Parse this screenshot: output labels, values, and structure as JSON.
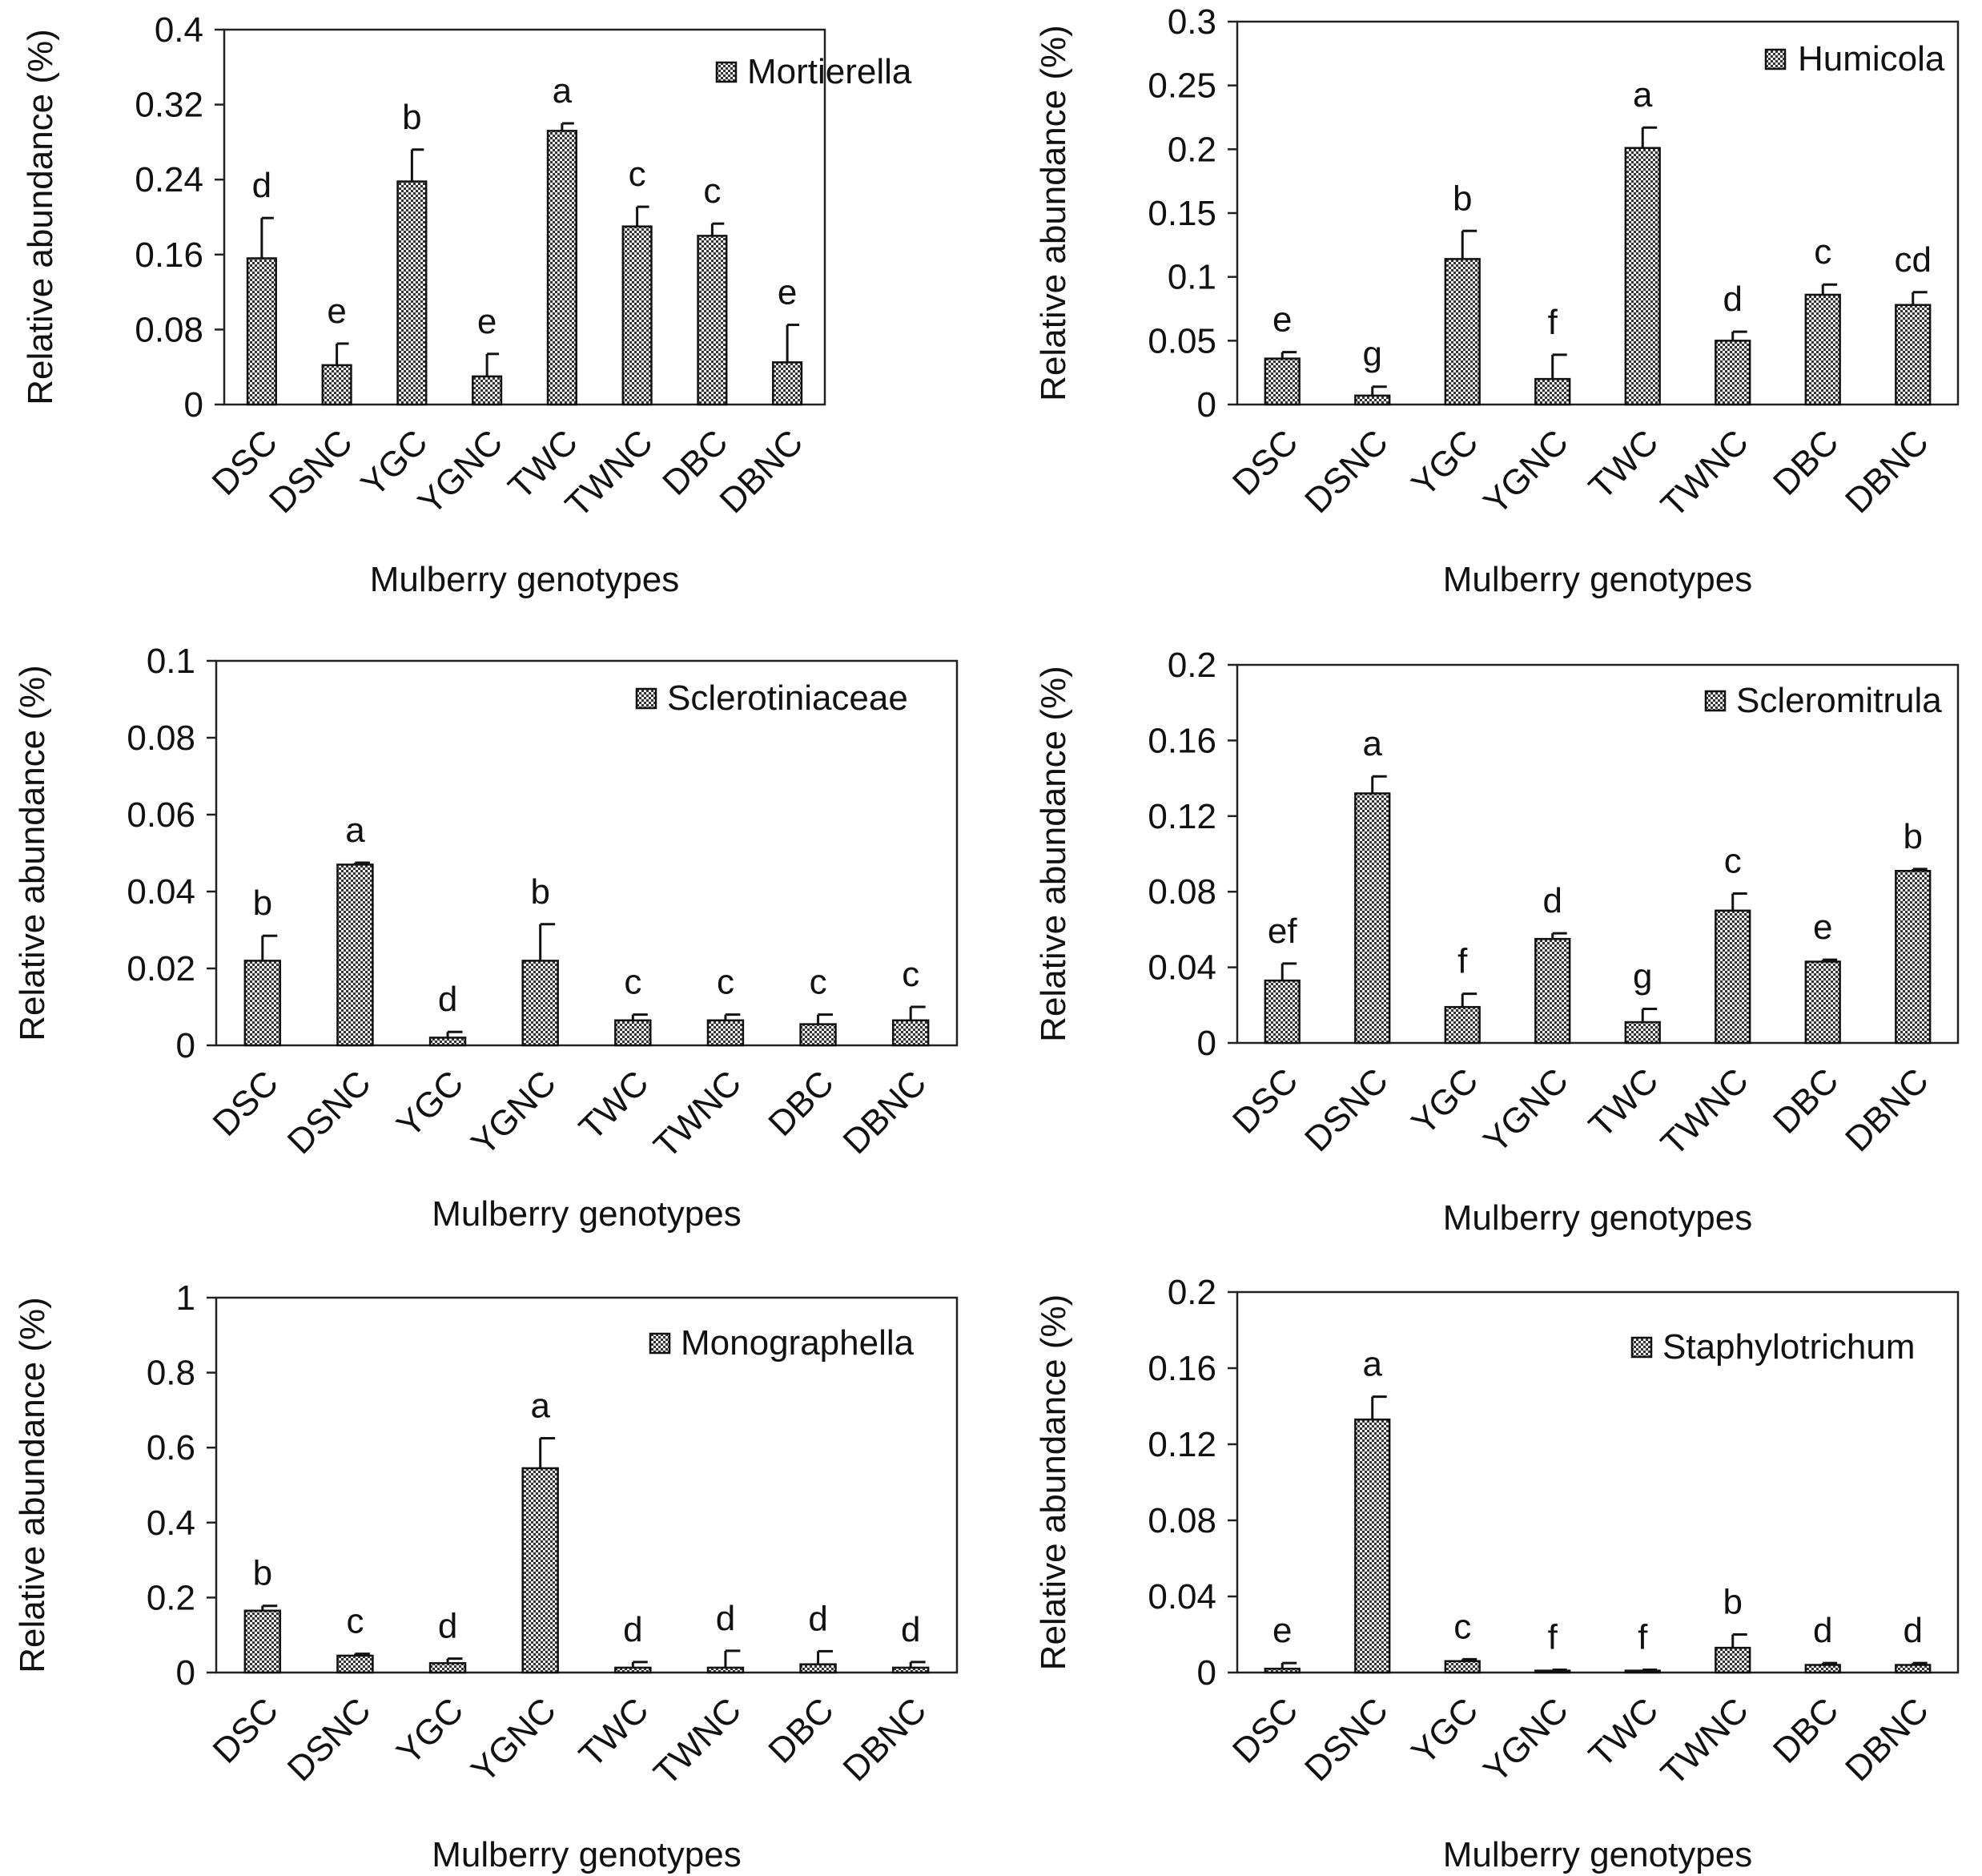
{
  "figure": {
    "x_axis_label": "Mulberry genotypes",
    "y_axis_label": "Relative abundance (%)"
  },
  "chart_data": [
    {
      "type": "bar",
      "title": "Mortierella",
      "legend": "Mortierella",
      "legend_position": "top-right",
      "xlabel": "Mulberry genotypes",
      "ylabel": "Relative abundance (%)",
      "categories": [
        "DSC",
        "DSNC",
        "YGC",
        "YGNC",
        "TWC",
        "TWNC",
        "DBC",
        "DBNC"
      ],
      "values": [
        0.156,
        0.042,
        0.238,
        0.03,
        0.292,
        0.19,
        0.18,
        0.045
      ],
      "errors": [
        0.043,
        0.023,
        0.034,
        0.024,
        0.008,
        0.021,
        0.013,
        0.04
      ],
      "significance": [
        "d",
        "e",
        "b",
        "e",
        "a",
        "c",
        "c",
        "e"
      ],
      "ylim": [
        0,
        0.4
      ],
      "yticks": [
        0,
        0.08,
        0.16,
        0.24,
        0.32,
        0.4
      ],
      "ytick_labels": [
        "0",
        "0.08",
        "0.16",
        "0.24",
        "0.32",
        "0.4"
      ]
    },
    {
      "type": "bar",
      "title": "Humicola",
      "legend": "Humicola",
      "legend_position": "top-right",
      "xlabel": "Mulberry genotypes",
      "ylabel": "Relative abundance (%)",
      "categories": [
        "DSC",
        "DSNC",
        "YGC",
        "YGNC",
        "TWC",
        "TWNC",
        "DBC",
        "DBNC"
      ],
      "values": [
        0.036,
        0.007,
        0.114,
        0.02,
        0.201,
        0.05,
        0.086,
        0.078
      ],
      "errors": [
        0.005,
        0.007,
        0.022,
        0.019,
        0.016,
        0.007,
        0.008,
        0.01
      ],
      "significance": [
        "e",
        "g",
        "b",
        "f",
        "a",
        "d",
        "c",
        "cd"
      ],
      "ylim": [
        0,
        0.3
      ],
      "yticks": [
        0,
        0.05,
        0.1,
        0.15,
        0.2,
        0.25,
        0.3
      ],
      "ytick_labels": [
        "0",
        "0.05",
        "0.1",
        "0.15",
        "0.2",
        "0.25",
        "0.3"
      ]
    },
    {
      "type": "bar",
      "title": "Sclerotiniaceae",
      "legend": "Sclerotiniaceae",
      "legend_position": "top-right",
      "xlabel": "Mulberry genotypes",
      "ylabel": "Relative abundance (%)",
      "categories": [
        "DSC",
        "DSNC",
        "YGC",
        "YGNC",
        "TWC",
        "TWNC",
        "DBC",
        "DBNC"
      ],
      "values": [
        0.022,
        0.047,
        0.002,
        0.022,
        0.0065,
        0.0065,
        0.0055,
        0.0065
      ],
      "errors": [
        0.0065,
        0.0005,
        0.0015,
        0.0095,
        0.0015,
        0.0015,
        0.0025,
        0.0035
      ],
      "significance": [
        "b",
        "a",
        "d",
        "b",
        "c",
        "c",
        "c",
        "c"
      ],
      "ylim": [
        0,
        0.1
      ],
      "yticks": [
        0,
        0.02,
        0.04,
        0.06,
        0.08,
        0.1
      ],
      "ytick_labels": [
        "0",
        "0.02",
        "0.04",
        "0.06",
        "0.08",
        "0.1"
      ]
    },
    {
      "type": "bar",
      "title": "Scleromitrula",
      "legend": "Scleromitrula",
      "legend_position": "top-right",
      "xlabel": "Mulberry genotypes",
      "ylabel": "Relative abundance (%)",
      "categories": [
        "DSC",
        "DSNC",
        "YGC",
        "YGNC",
        "TWC",
        "TWNC",
        "DBC",
        "DBNC"
      ],
      "values": [
        0.033,
        0.132,
        0.019,
        0.055,
        0.011,
        0.07,
        0.043,
        0.091
      ],
      "errors": [
        0.009,
        0.009,
        0.007,
        0.003,
        0.007,
        0.009,
        0.001,
        0.001
      ],
      "significance": [
        "ef",
        "a",
        "f",
        "d",
        "g",
        "c",
        "e",
        "b"
      ],
      "ylim": [
        0,
        0.2
      ],
      "yticks": [
        0,
        0.04,
        0.08,
        0.12,
        0.16,
        0.2
      ],
      "ytick_labels": [
        "0",
        "0.04",
        "0.08",
        "0.12",
        "0.16",
        "0.2"
      ]
    },
    {
      "type": "bar",
      "title": "Monographella",
      "legend": "Monographella",
      "legend_position": "top-right",
      "xlabel": "Mulberry genotypes",
      "ylabel": "Relative abundance (%)",
      "categories": [
        "DSC",
        "DSNC",
        "YGC",
        "YGNC",
        "TWC",
        "TWNC",
        "DBC",
        "DBNC"
      ],
      "values": [
        0.165,
        0.045,
        0.025,
        0.545,
        0.013,
        0.013,
        0.022,
        0.013
      ],
      "errors": [
        0.013,
        0.005,
        0.012,
        0.08,
        0.015,
        0.045,
        0.035,
        0.015
      ],
      "significance": [
        "b",
        "c",
        "d",
        "a",
        "d",
        "d",
        "d",
        "d"
      ],
      "ylim": [
        0,
        1
      ],
      "yticks": [
        0,
        0.2,
        0.4,
        0.6,
        0.8,
        1
      ],
      "ytick_labels": [
        "0",
        "0.2",
        "0.4",
        "0.6",
        "0.8",
        "1"
      ]
    },
    {
      "type": "bar",
      "title": "Staphylotrichum",
      "legend": "Staphylotrichum",
      "legend_position": "top-right",
      "xlabel": "Mulberry genotypes",
      "ylabel": "Relative abundance (%)",
      "categories": [
        "DSC",
        "DSNC",
        "YGC",
        "YGNC",
        "TWC",
        "TWNC",
        "DBC",
        "DBNC"
      ],
      "values": [
        0.002,
        0.133,
        0.006,
        0.001,
        0.001,
        0.013,
        0.004,
        0.004
      ],
      "errors": [
        0.003,
        0.012,
        0.001,
        0.0005,
        0.0005,
        0.007,
        0.001,
        0.001
      ],
      "significance": [
        "e",
        "a",
        "c",
        "f",
        "f",
        "b",
        "d",
        "d"
      ],
      "ylim": [
        0,
        0.2
      ],
      "yticks": [
        0,
        0.04,
        0.08,
        0.12,
        0.16,
        0.2
      ],
      "ytick_labels": [
        "0",
        "0.04",
        "0.08",
        "0.12",
        "0.16",
        "0.2"
      ]
    }
  ]
}
